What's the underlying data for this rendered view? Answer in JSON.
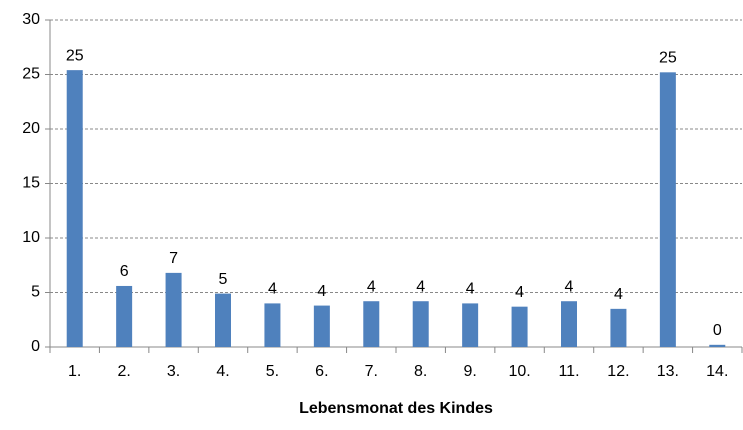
{
  "chart_data": {
    "type": "bar",
    "x_label": "Lebensmonat des Kindes",
    "categories": [
      "1.",
      "2.",
      "3.",
      "4.",
      "5.",
      "6.",
      "7.",
      "8.",
      "9.",
      "10.",
      "11.",
      "12.",
      "13.",
      "14."
    ],
    "values": [
      25.4,
      5.6,
      6.8,
      4.9,
      4.0,
      3.8,
      4.2,
      4.2,
      4.0,
      3.7,
      4.2,
      3.5,
      25.2,
      0.2
    ],
    "value_labels": [
      "25",
      "6",
      "7",
      "5",
      "4",
      "4",
      "4",
      "4",
      "4",
      "4",
      "4",
      "4",
      "25",
      "0"
    ],
    "color": "#4f81bd",
    "ylim": [
      0,
      30
    ],
    "yticks": [
      0,
      5,
      10,
      15,
      20,
      25,
      30
    ],
    "grid": true
  }
}
